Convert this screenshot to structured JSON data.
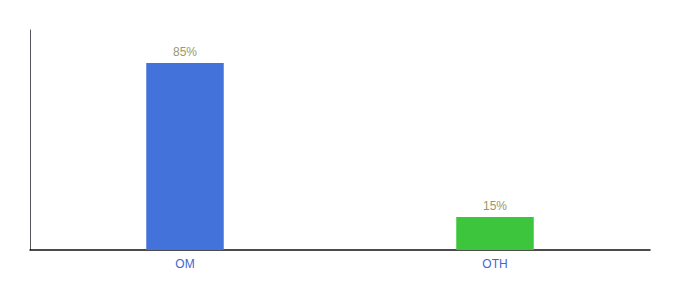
{
  "chart_data": {
    "type": "bar",
    "categories": [
      "OM",
      "OTH"
    ],
    "values": [
      85,
      15
    ],
    "value_labels": [
      "85%",
      "15%"
    ],
    "colors": [
      "#4472db",
      "#3dc63d"
    ],
    "ylim": [
      0,
      100
    ],
    "data_labels": true,
    "tick_labels": "x",
    "grid": false
  }
}
